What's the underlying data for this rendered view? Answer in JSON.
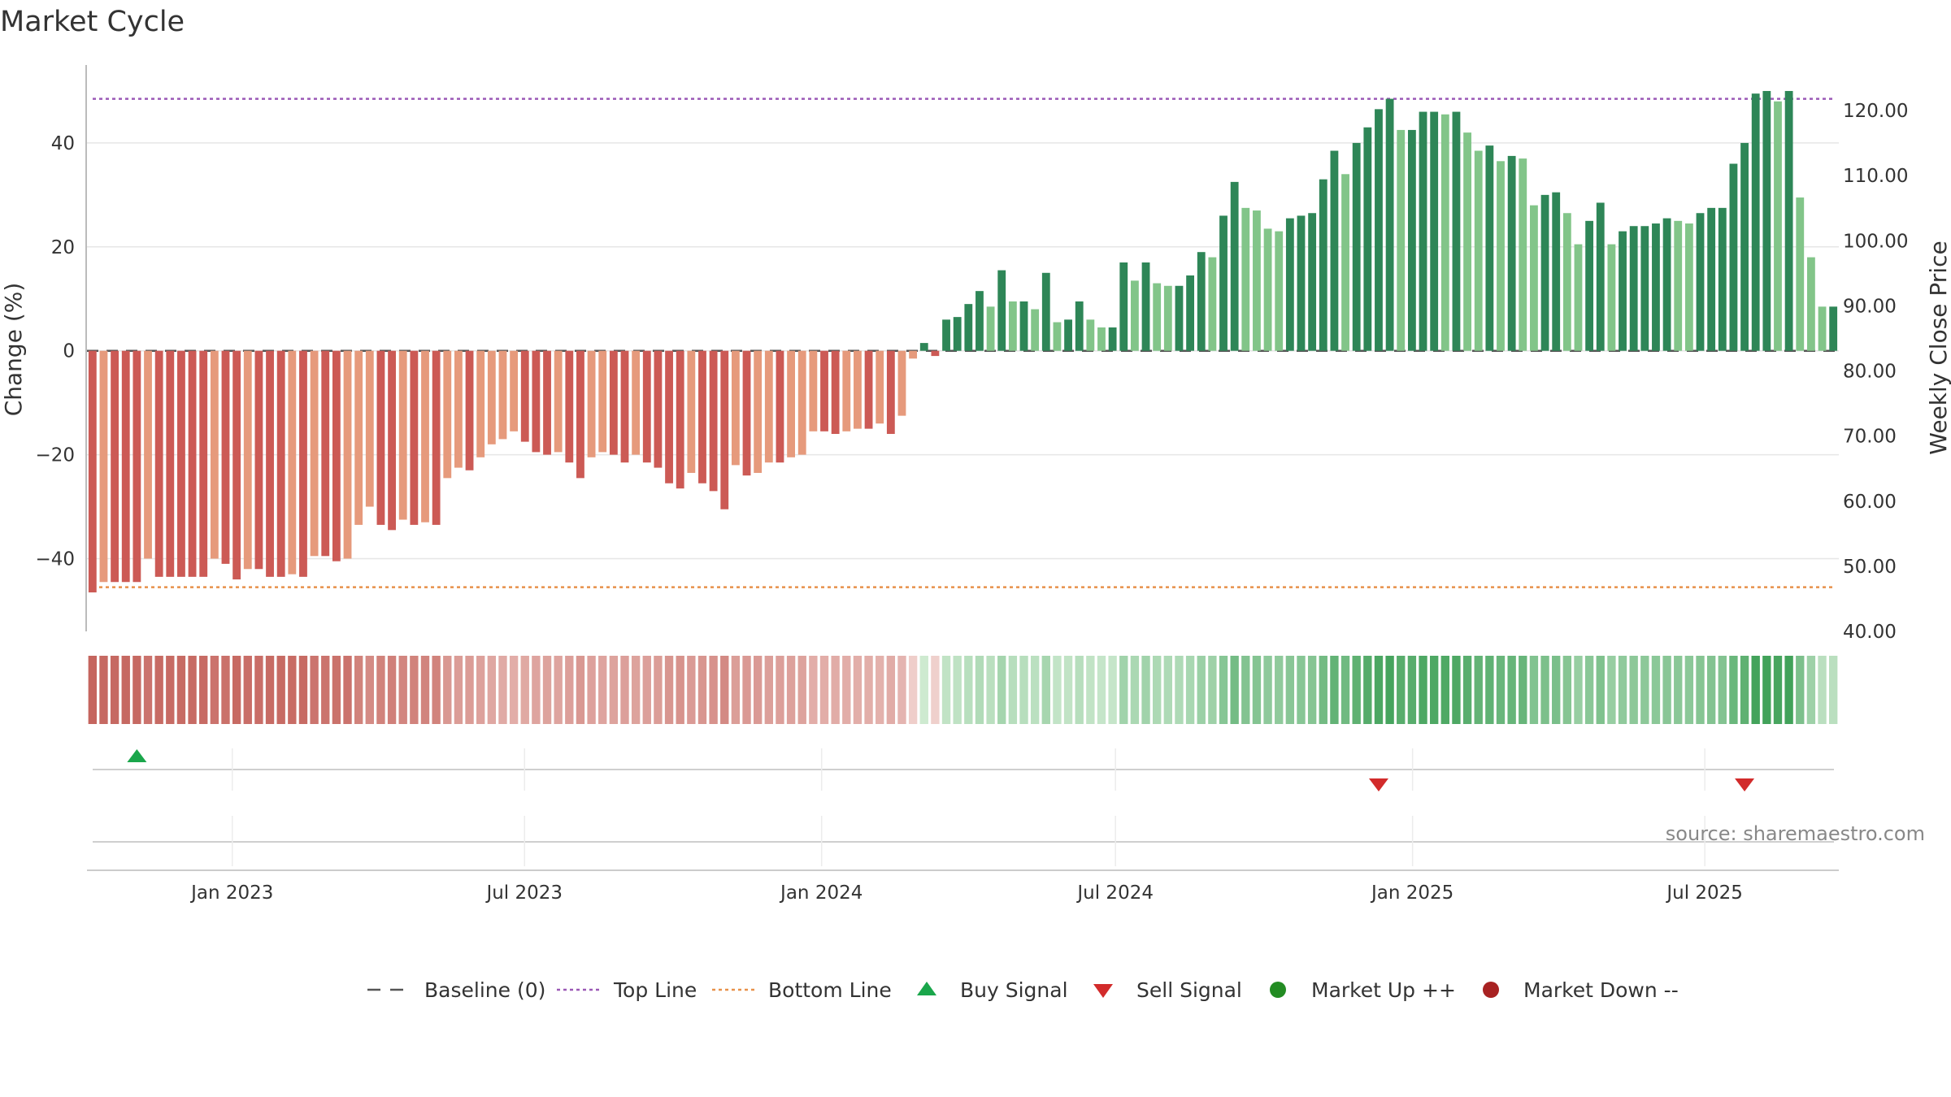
{
  "chart_data": {
    "type": "bar",
    "title": "Market Cycle",
    "ylabel": "Change (%)",
    "y2label": "Weekly Close Price",
    "ylim": [
      -54,
      55
    ],
    "y2lim": [
      40,
      127
    ],
    "yticks": [
      -40,
      -20,
      0,
      20,
      40
    ],
    "yticks_labels": [
      "−40",
      "−20",
      "0",
      "20",
      "40"
    ],
    "y2ticks": [
      40,
      50,
      60,
      70,
      80,
      90,
      100,
      110,
      120
    ],
    "y2ticks_labels": [
      "40.00",
      "50.00",
      "60.00",
      "70.00",
      "80.00",
      "90.00",
      "100.00",
      "110.00",
      "120.00"
    ],
    "x_start": "2022-10-03",
    "x_end": "2025-09-22",
    "xticks": [
      {
        "date": "2023-01-01",
        "label": "Jan 2023"
      },
      {
        "date": "2023-07-01",
        "label": "Jul 2023"
      },
      {
        "date": "2024-01-01",
        "label": "Jan 2024"
      },
      {
        "date": "2024-07-01",
        "label": "Jul 2024"
      },
      {
        "date": "2025-01-01",
        "label": "Jan 2025"
      },
      {
        "date": "2025-07-01",
        "label": "Jul 2025"
      }
    ],
    "top_line": 48.5,
    "bottom_line": -45.5,
    "baseline": 0,
    "change_pct": [
      -46.5,
      -44.5,
      -44.5,
      -44.5,
      -44.5,
      -40,
      -43.5,
      -43.5,
      -43.5,
      -43.5,
      -43.5,
      -40,
      -41,
      -44,
      -42,
      -42,
      -43.5,
      -43.5,
      -43,
      -43.5,
      -39.5,
      -39.5,
      -40.5,
      -40,
      -33.5,
      -30,
      -33.5,
      -34.5,
      -32.5,
      -33.5,
      -33,
      -33.5,
      -24.5,
      -22.5,
      -23,
      -20.5,
      -18,
      -17,
      -15.5,
      -17.5,
      -19.5,
      -20,
      -19.5,
      -21.5,
      -24.5,
      -20.5,
      -19.5,
      -20,
      -21.5,
      -20,
      -21.5,
      -22.5,
      -25.5,
      -26.5,
      -23.5,
      -25.5,
      -27,
      -30.5,
      -22,
      -24,
      -23.5,
      -21.5,
      -21.5,
      -20.5,
      -20,
      -15.5,
      -15.5,
      -16,
      -15.5,
      -15,
      -15,
      -14,
      -16,
      -12.5,
      -1.5,
      1.5,
      -1,
      6,
      6.5,
      9,
      11.5,
      8.5,
      15.5,
      9.5,
      9.5,
      8,
      15,
      5.5,
      6,
      9.5,
      6,
      4.5,
      4.5,
      17,
      13.5,
      17,
      13,
      12.5,
      12.5,
      14.5,
      19,
      18,
      26,
      32.5,
      27.5,
      27,
      23.5,
      23,
      25.5,
      26,
      26.5,
      33,
      38.5,
      34,
      40,
      43,
      46.5,
      48.5,
      42.5,
      42.5,
      46,
      46,
      45.5,
      46,
      42,
      38.5,
      39.5,
      36.5,
      37.5,
      37,
      28,
      30,
      30.5,
      26.5,
      20.5,
      25,
      28.5,
      20.5,
      23,
      24,
      24,
      24.5,
      25.5,
      25,
      24.5,
      26.5,
      27.5,
      27.5,
      36,
      40,
      49.5,
      50,
      48,
      50,
      29.5,
      18,
      8.5,
      8.5
    ],
    "price_range": [
      46,
      127
    ],
    "buy_signals": [
      {
        "index": 4
      }
    ],
    "sell_signals": [
      {
        "index": 116
      },
      {
        "index": 149
      }
    ],
    "colors": {
      "neg_strong": "#cc5a55",
      "neg_weak": "#e69a7c",
      "pos_strong": "#2e8657",
      "pos_weak": "#82c589",
      "top_line": "#9b59b6",
      "bottom_line": "#e8914a",
      "baseline": "#555555",
      "buy": "#1aa64b",
      "sell": "#d22b2b",
      "market_up": "#238c23",
      "market_down": "#a82222"
    },
    "source": "source: sharemaestro.com",
    "legend": [
      {
        "label": "Baseline (0)",
        "symbol": "dash"
      },
      {
        "label": "Top Line",
        "symbol": "dotted-purple"
      },
      {
        "label": "Bottom Line",
        "symbol": "dotted-orange"
      },
      {
        "label": "Buy Signal",
        "symbol": "triangle-up"
      },
      {
        "label": "Sell Signal",
        "symbol": "triangle-down"
      },
      {
        "label": "Market Up ++",
        "symbol": "circle-green"
      },
      {
        "label": "Market Down --",
        "symbol": "circle-red"
      }
    ]
  }
}
